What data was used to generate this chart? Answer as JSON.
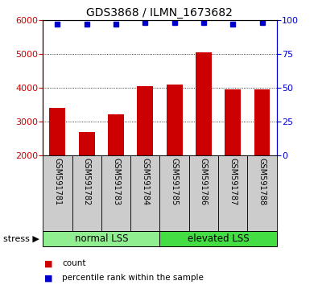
{
  "title": "GDS3868 / ILMN_1673682",
  "samples": [
    "GSM591781",
    "GSM591782",
    "GSM591783",
    "GSM591784",
    "GSM591785",
    "GSM591786",
    "GSM591787",
    "GSM591788"
  ],
  "counts": [
    3400,
    2700,
    3200,
    4050,
    4100,
    5050,
    3950,
    3950
  ],
  "percentile_ranks": [
    97,
    97,
    97,
    98,
    98,
    98,
    97,
    98
  ],
  "ylim_left": [
    2000,
    6000
  ],
  "ylim_right": [
    0,
    100
  ],
  "yticks_left": [
    2000,
    3000,
    4000,
    5000,
    6000
  ],
  "yticks_right": [
    0,
    25,
    50,
    75,
    100
  ],
  "bar_color": "#cc0000",
  "dot_color": "#0000cc",
  "bar_width": 0.55,
  "groups": [
    {
      "label": "normal LSS",
      "color": "#90ee90"
    },
    {
      "label": "elevated LSS",
      "color": "#44dd44"
    }
  ],
  "stress_label": "stress ▶",
  "legend_count_label": "count",
  "legend_percentile_label": "percentile rank within the sample",
  "tick_label_color_left": "#cc0000",
  "tick_label_color_right": "#0000cc",
  "xticklabel_area_color": "#cccccc"
}
